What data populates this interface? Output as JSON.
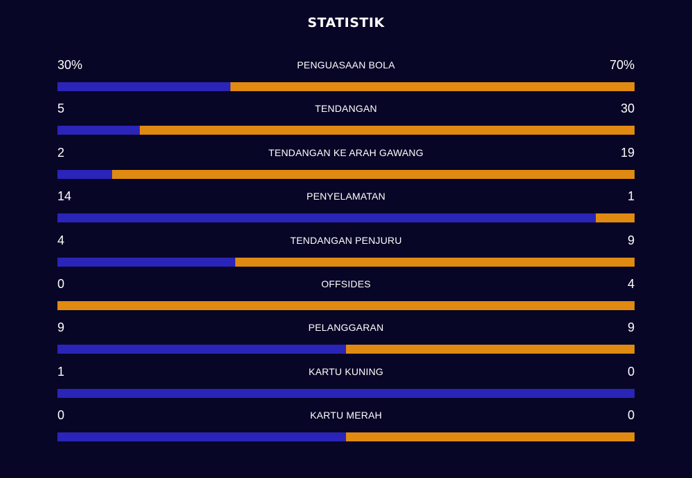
{
  "title": "STATISTIK",
  "colors": {
    "background": "#080626",
    "home": "#2b24b8",
    "away": "#e08a12",
    "text": "#ffffff"
  },
  "stats": [
    {
      "label": "PENGUASAAN BOLA",
      "left": "30%",
      "right": "70%",
      "left_value": 30,
      "right_value": 70
    },
    {
      "label": "TENDANGAN",
      "left": "5",
      "right": "30",
      "left_value": 5,
      "right_value": 30
    },
    {
      "label": "TENDANGAN KE ARAH GAWANG",
      "left": "2",
      "right": "19",
      "left_value": 2,
      "right_value": 19
    },
    {
      "label": "PENYELAMATAN",
      "left": "14",
      "right": "1",
      "left_value": 14,
      "right_value": 1
    },
    {
      "label": "TENDANGAN PENJURU",
      "left": "4",
      "right": "9",
      "left_value": 4,
      "right_value": 9
    },
    {
      "label": "OFFSIDES",
      "left": "0",
      "right": "4",
      "left_value": 0,
      "right_value": 4
    },
    {
      "label": "PELANGGARAN",
      "left": "9",
      "right": "9",
      "left_value": 9,
      "right_value": 9
    },
    {
      "label": "KARTU KUNING",
      "left": "1",
      "right": "0",
      "left_value": 1,
      "right_value": 0
    },
    {
      "label": "KARTU MERAH",
      "left": "0",
      "right": "0",
      "left_value": 0,
      "right_value": 0
    }
  ]
}
